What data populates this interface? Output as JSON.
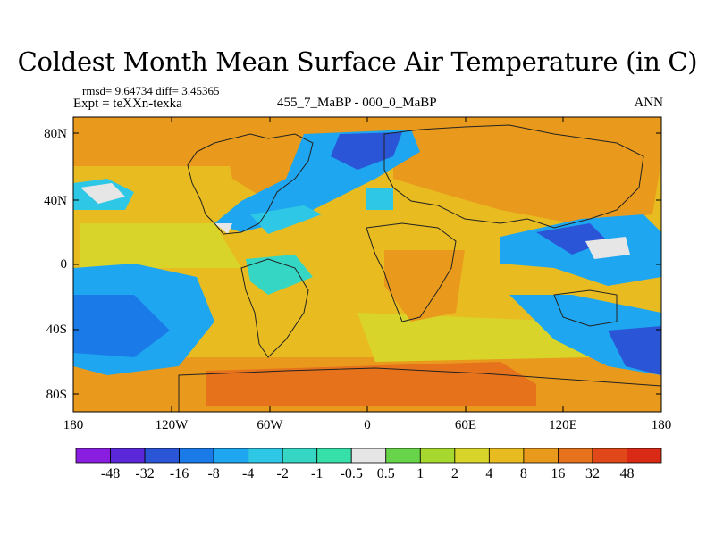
{
  "title": "Coldest Month Mean Surface Air Temperature (in C)",
  "stats": "rmsd= 9.64734 diff= 3.45365",
  "experiment": "Expt = teXXn-texka",
  "subtitle": "455_7_MaBP - 000_0_MaBP",
  "season": "ANN",
  "axes": {
    "y_labels": [
      "80N",
      "40N",
      "0",
      "40S",
      "80S"
    ],
    "x_labels": [
      "180",
      "120W",
      "60W",
      "0",
      "60E",
      "120E",
      "180"
    ]
  },
  "colorbar": {
    "colors": [
      "#8a1ee0",
      "#5a28d8",
      "#2a55d6",
      "#1a7be8",
      "#1ea6f0",
      "#2ec8e6",
      "#35d6c4",
      "#36e0a8",
      "#e6e6e6",
      "#68d44a",
      "#a6d830",
      "#d8d42a",
      "#e8bc20",
      "#e99a1c",
      "#e6721c",
      "#e0481a",
      "#d82a14"
    ],
    "labels": [
      "-48",
      "-32",
      "-16",
      "-8",
      "-4",
      "-2",
      "-1",
      "-0.5",
      "0.5",
      "1",
      "2",
      "4",
      "8",
      "16",
      "32",
      "48"
    ]
  }
}
